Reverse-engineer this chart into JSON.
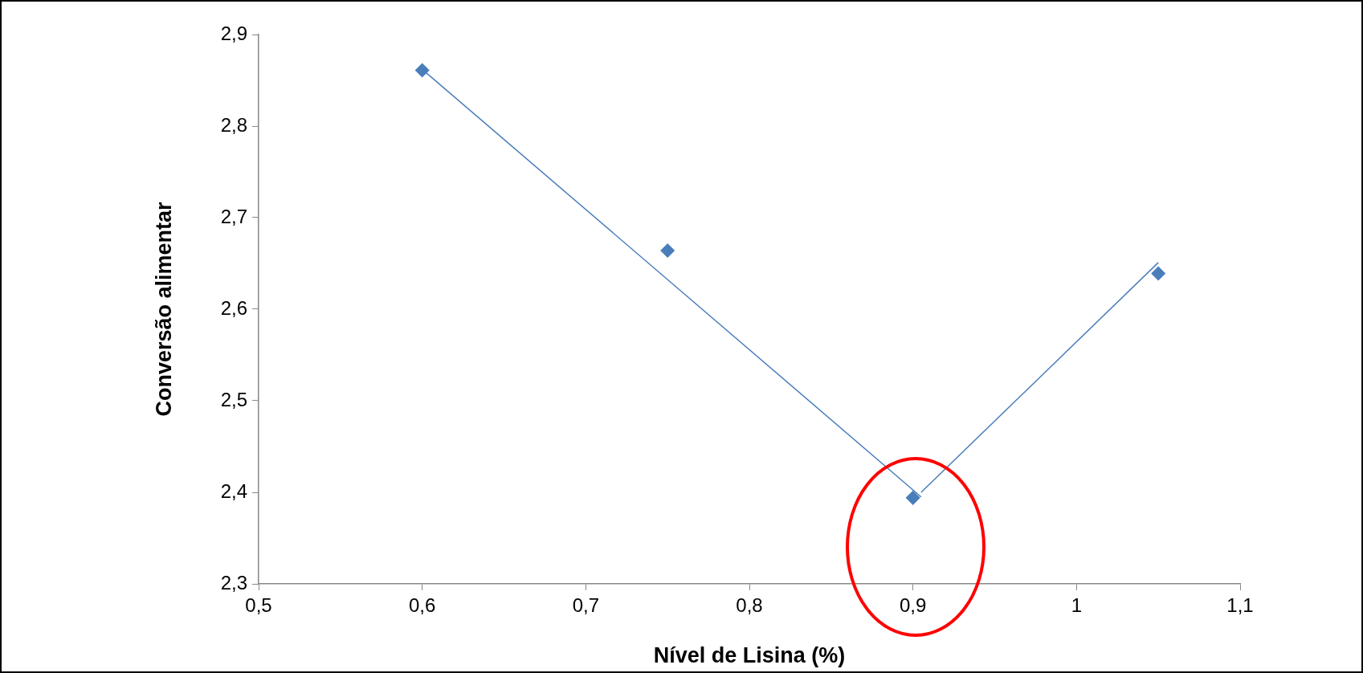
{
  "chart_data": {
    "type": "scatter",
    "xlabel": "Nível de Lisina (%)",
    "ylabel": "Conversão alimentar",
    "xlim": [
      0.5,
      1.1
    ],
    "xticks": [
      {
        "value": 0.5,
        "label": "0,5"
      },
      {
        "value": 0.6,
        "label": "0,6"
      },
      {
        "value": 0.7,
        "label": "0,7"
      },
      {
        "value": 0.8,
        "label": "0,8"
      },
      {
        "value": 0.9,
        "label": "0,9"
      },
      1,
      {
        "value": 1.1,
        "label": "1,1"
      }
    ],
    "ylim": [
      2.3,
      2.9
    ],
    "yticks": [
      {
        "value": 2.3,
        "label": "2,3"
      },
      {
        "value": 2.4,
        "label": "2,4"
      },
      {
        "value": 2.5,
        "label": "2,5"
      },
      {
        "value": 2.6,
        "label": "2,6"
      },
      {
        "value": 2.7,
        "label": "2,7"
      },
      {
        "value": 2.8,
        "label": "2,8"
      },
      {
        "value": 2.9,
        "label": "2,9"
      }
    ],
    "grid": false,
    "legend": false,
    "series": [
      {
        "marker": "diamond",
        "color": "#4a7ebb",
        "x": [
          0.6,
          0.75,
          0.9,
          1.05
        ],
        "values": [
          2.861,
          2.664,
          2.394,
          2.639
        ]
      },
      {
        "type": "line",
        "marker": "none",
        "color": "#4a7ebb",
        "x": [
          0.6,
          0.905
        ],
        "values": [
          2.862,
          2.395
        ]
      },
      {
        "type": "line",
        "marker": "none",
        "color": "#4a7ebb",
        "x": [
          0.905,
          1.05
        ],
        "values": [
          2.4,
          2.651
        ]
      }
    ]
  }
}
